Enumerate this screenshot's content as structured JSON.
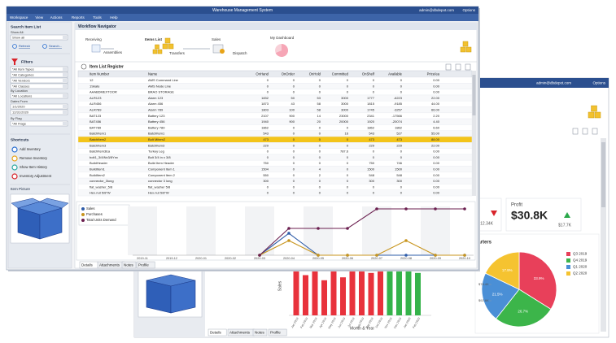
{
  "front_window": {
    "title": "Warehouse Management System",
    "user": "admin@dbdepot.com",
    "options": "Options",
    "menu": [
      "Workspace",
      "View",
      "Actions",
      "Reports",
      "Tools",
      "Help"
    ],
    "left_panel": {
      "search_title": "Search Item List",
      "show_all_label": "Show All:",
      "show_all_value": "Show all",
      "refresh": "Refresh",
      "search": "Search...",
      "filters_title": "Filters",
      "filters": [
        "*All Item Types",
        "*All Categories",
        "*All Vendors",
        "*All Classes"
      ],
      "location_label": "By Location",
      "location_value": "*All Locations",
      "dates_label": "Dates From",
      "date_from": "1/1/2020",
      "date_to": "12/31/2020",
      "flag_label": "By Flag",
      "flag_value": "*All Flags",
      "shortcuts_title": "Shortcuts",
      "shortcuts": [
        "Add Inventory",
        "Remove Inventory",
        "Show Item History",
        "Inventory Adjustment"
      ],
      "picture_title": "Item Picture"
    },
    "navigator": {
      "title": "Workflow Navigator",
      "items": [
        "Receiving",
        "Assemblies",
        "Items List",
        "Transfers",
        "Sales",
        "Dispatch",
        "My Dashboard"
      ]
    },
    "register": {
      "title": "Item List Register",
      "columns": [
        "Item Number",
        "Name",
        "OnHand",
        "OnOrder",
        "OnHold",
        "Committed",
        "OnShelf",
        "Available",
        "Price/ea"
      ],
      "selected_row": 10,
      "rows": [
        [
          "12",
          "AMS Command Line",
          "0",
          "0",
          "0",
          "0",
          "0",
          "0",
          "0.00"
        ],
        [
          "1Skate",
          "AMS Node Line",
          "0",
          "0",
          "0",
          "0",
          "0",
          "0",
          "0.00"
        ],
        [
          "AAABDMEXTOOR",
          "BRAO STORAGE",
          "0",
          "0",
          "0",
          "0",
          "0",
          "0",
          "0.00"
        ],
        [
          "ALR123",
          "Alarm 123",
          "1832",
          "50",
          "53",
          "3000",
          "1777",
          "-6223",
          "22.00"
        ],
        [
          "ALR456",
          "Alarm 456",
          "1873",
          "43",
          "58",
          "3000",
          "1815",
          "-9185",
          "44.00"
        ],
        [
          "ALR789",
          "Alarm 789",
          "1803",
          "100",
          "58",
          "3000",
          "1745",
          "-3257",
          "66.00"
        ],
        [
          "BAT123",
          "Battery 123",
          "2107",
          "900",
          "14",
          "23000",
          "2341",
          "-17566",
          "2.20"
        ],
        [
          "BAT456",
          "Battery 456",
          "1940",
          "900",
          "20",
          "20000",
          "1920",
          "-20074",
          "4.40"
        ],
        [
          "BAT789",
          "Battery 789",
          "1862",
          "0",
          "0",
          "0",
          "1862",
          "1862",
          "6.60"
        ],
        [
          "BatchItem1",
          "BatchItem1",
          "543",
          "0",
          "0",
          "16",
          "543",
          "527",
          "55.00"
        ],
        [
          "BatchItem2",
          "Bolt Mitem2",
          "473",
          "0",
          "0",
          "0",
          "473",
          "473",
          "88.00"
        ],
        [
          "BatchItem3",
          "BatchItem3",
          "229",
          "0",
          "0",
          "0",
          "229",
          "229",
          "22.00"
        ],
        [
          "BatchItem3Ea",
          "Turkey Leg",
          "0",
          "0",
          "0",
          "787.6",
          "0",
          "0",
          "0.00"
        ],
        [
          "bolt1_3/4INx3/8Ynx",
          "Bolt 3/4 in x 3/8",
          "0",
          "0",
          "0",
          "0",
          "0",
          "0",
          "0.00"
        ],
        [
          "BuildHeader",
          "Build Item Header",
          "750",
          "0",
          "0",
          "0",
          "750",
          "746",
          "0.00"
        ],
        [
          "BuildItem1",
          "Component Item 1",
          "1504",
          "0",
          "4",
          "0",
          "1500",
          "1500",
          "0.00"
        ],
        [
          "BuildItem2",
          "Component Item 2",
          "550",
          "0",
          "2",
          "0",
          "548",
          "548",
          "0.00"
        ],
        [
          "connector_3long",
          "connector 3 long",
          "300",
          "0",
          "0",
          "0",
          "300",
          "300",
          "0.00"
        ],
        [
          "flat_washer_5/8",
          "flat_washer 5/8",
          "0",
          "0",
          "0",
          "0",
          "0",
          "0",
          "0.00"
        ],
        [
          "Hex.nut 5/8\"W",
          "Hex.nut 5/8\"W",
          "0",
          "0",
          "0",
          "0",
          "0",
          "0",
          "0.00"
        ]
      ]
    },
    "chart_data": {
      "type": "line",
      "categories": [
        "2019-11",
        "2019-12",
        "2020-01",
        "2020-02",
        "2020-03",
        "2020-04",
        "2020-05",
        "2020-06",
        "2020-07",
        "2020-08",
        "2020-09",
        "2020-10"
      ],
      "ylim": [
        0,
        100
      ],
      "series": [
        {
          "name": "Sales",
          "color": "#2e5ca8",
          "values": [
            null,
            null,
            null,
            null,
            0,
            45,
            0,
            0,
            0,
            0,
            0,
            0
          ]
        },
        {
          "name": "Purchases",
          "color": "#c8951e",
          "values": [
            null,
            null,
            null,
            null,
            0,
            30,
            0,
            0,
            0,
            30,
            0,
            0
          ]
        },
        {
          "name": "Total Units Demand",
          "color": "#6b1f4f",
          "values": [
            null,
            null,
            null,
            null,
            0,
            55,
            55,
            55,
            95,
            95,
            95,
            95
          ]
        }
      ]
    },
    "tabs": [
      "Details",
      "Attachments",
      "Notes",
      "Profile"
    ]
  },
  "back_window": {
    "user": "admin@dbdepot.com",
    "options": "Options",
    "kpi_left_value": "$12.34K",
    "profit_label": "Profit",
    "profit_value": "$30.8K",
    "profit_previous": "$17.7K",
    "bar_chart": {
      "type": "bar",
      "y_label": "Sales",
      "x_label": "Month & Year",
      "categories": [
        "Jan 2019",
        "Feb 2019",
        "Mar 2019",
        "Apr 2019",
        "May 2019",
        "Jun 2019",
        "Jul 2019",
        "Aug 2019",
        "Sep 2019",
        "Oct 2019",
        "Nov 2019",
        "Dec 2019",
        "Jan 2020",
        "Feb 2020"
      ],
      "ylim": [
        0,
        100
      ],
      "series": [
        {
          "color": "#e8323c",
          "values": [
            62,
            55,
            70,
            48,
            75,
            52,
            66,
            72,
            58,
            68,
            null,
            null,
            null,
            null
          ]
        },
        {
          "color": "#35b34a",
          "values": [
            null,
            null,
            null,
            null,
            null,
            null,
            null,
            null,
            null,
            null,
            80,
            70,
            65,
            58
          ]
        }
      ]
    },
    "pie_chart": {
      "type": "pie",
      "title": "Sales by Quarters",
      "categories": [
        "Q3 2019",
        "Q4 2019",
        "Q1 2020",
        "Q2 2020"
      ],
      "values": [
        33.9,
        26.7,
        21.5,
        17.9
      ],
      "value_labels": [
        "33.9%",
        "26.7%",
        "21.5%",
        "17.9%"
      ],
      "colors": [
        "#e8405a",
        "#3cb54a",
        "#4a8fd6",
        "#f5c330"
      ],
      "callouts": [
        "$76.4K",
        "$92.6K"
      ]
    },
    "tabs": [
      "Details",
      "Attachments",
      "Notes",
      "Profile"
    ]
  }
}
